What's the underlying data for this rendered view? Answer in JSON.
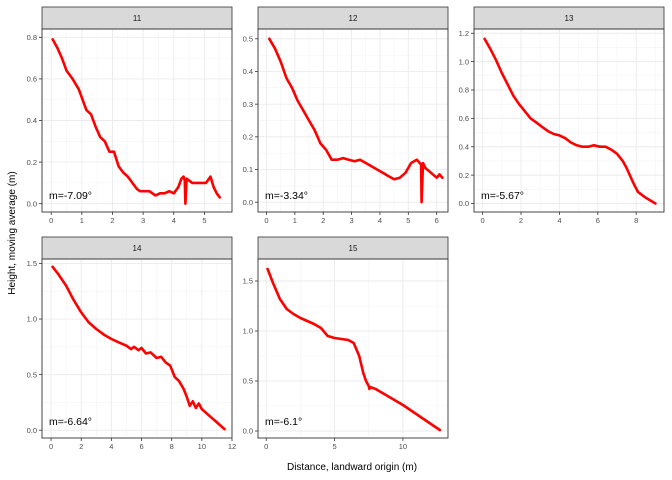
{
  "xlabel": "Distance, landward origin (m)",
  "ylabel": "Height, moving average (m)",
  "line_color": "#ff0000",
  "chart_data": [
    {
      "type": "line",
      "title": "11",
      "annotation": "m=-7.09°",
      "xlim": [
        -0.3,
        5.9
      ],
      "ylim": [
        -0.04,
        0.84
      ],
      "x_ticks": [
        0,
        1,
        2,
        3,
        4,
        5
      ],
      "y_ticks": [
        0,
        0.2,
        0.4,
        0.6,
        0.8
      ],
      "y_tick_labels": [
        "0.0",
        "0.2",
        "0.4",
        "0.6",
        "0.8"
      ],
      "x": [
        0.05,
        0.2,
        0.35,
        0.5,
        0.7,
        0.9,
        1.0,
        1.15,
        1.3,
        1.45,
        1.6,
        1.75,
        1.9,
        2.05,
        2.2,
        2.35,
        2.5,
        2.65,
        2.8,
        2.9,
        3.0,
        3.2,
        3.4,
        3.55,
        3.7,
        3.85,
        4.0,
        4.15,
        4.25,
        4.32,
        4.36,
        4.38,
        4.42,
        4.6,
        4.75,
        4.9,
        5.05,
        5.2,
        5.3,
        5.4,
        5.5
      ],
      "y": [
        0.79,
        0.75,
        0.7,
        0.64,
        0.6,
        0.55,
        0.51,
        0.45,
        0.43,
        0.37,
        0.32,
        0.3,
        0.25,
        0.25,
        0.18,
        0.15,
        0.13,
        0.1,
        0.07,
        0.06,
        0.06,
        0.06,
        0.04,
        0.05,
        0.05,
        0.06,
        0.05,
        0.08,
        0.12,
        0.13,
        0.11,
        0.0,
        0.12,
        0.1,
        0.1,
        0.1,
        0.1,
        0.13,
        0.08,
        0.05,
        0.03
      ]
    },
    {
      "type": "line",
      "title": "12",
      "annotation": "m=-3.34°",
      "xlim": [
        -0.3,
        6.4
      ],
      "ylim": [
        -0.03,
        0.53
      ],
      "x_ticks": [
        0,
        1,
        2,
        3,
        4,
        5,
        6
      ],
      "y_ticks": [
        0,
        0.1,
        0.2,
        0.3,
        0.4,
        0.5
      ],
      "y_tick_labels": [
        "0.0",
        "0.1",
        "0.2",
        "0.3",
        "0.4",
        "0.5"
      ],
      "x": [
        0.1,
        0.3,
        0.5,
        0.7,
        0.9,
        1.1,
        1.3,
        1.5,
        1.7,
        1.9,
        2.1,
        2.3,
        2.5,
        2.7,
        2.9,
        3.1,
        3.3,
        3.5,
        3.7,
        3.9,
        4.1,
        4.3,
        4.5,
        4.7,
        4.9,
        5.1,
        5.3,
        5.45,
        5.47,
        5.52,
        5.6,
        5.8,
        6.0,
        6.1,
        6.2
      ],
      "y": [
        0.5,
        0.47,
        0.43,
        0.38,
        0.35,
        0.31,
        0.28,
        0.25,
        0.22,
        0.18,
        0.16,
        0.13,
        0.13,
        0.135,
        0.13,
        0.125,
        0.13,
        0.12,
        0.11,
        0.1,
        0.09,
        0.08,
        0.07,
        0.075,
        0.09,
        0.12,
        0.13,
        0.115,
        0.0,
        0.12,
        0.105,
        0.09,
        0.075,
        0.085,
        0.075
      ]
    },
    {
      "type": "line",
      "title": "13",
      "annotation": "m=-5.67°",
      "xlim": [
        -0.45,
        9.45
      ],
      "ylim": [
        -0.06,
        1.23
      ],
      "x_ticks": [
        0,
        2,
        4,
        6,
        8
      ],
      "y_ticks": [
        0,
        0.2,
        0.4,
        0.6,
        0.8,
        1.0,
        1.2
      ],
      "y_tick_labels": [
        "0.0",
        "0.2",
        "0.4",
        "0.6",
        "0.8",
        "1.0",
        "1.2"
      ],
      "x": [
        0.1,
        0.4,
        0.7,
        1.0,
        1.3,
        1.6,
        1.9,
        2.2,
        2.5,
        2.8,
        3.1,
        3.4,
        3.7,
        4.0,
        4.3,
        4.6,
        4.9,
        5.2,
        5.5,
        5.8,
        6.1,
        6.4,
        6.7,
        7.0,
        7.3,
        7.5,
        7.7,
        7.9,
        8.1,
        8.5,
        9.0
      ],
      "y": [
        1.16,
        1.09,
        1.01,
        0.92,
        0.84,
        0.76,
        0.7,
        0.65,
        0.6,
        0.57,
        0.54,
        0.51,
        0.49,
        0.48,
        0.46,
        0.43,
        0.41,
        0.4,
        0.4,
        0.41,
        0.4,
        0.4,
        0.38,
        0.35,
        0.3,
        0.25,
        0.19,
        0.13,
        0.08,
        0.04,
        0.0
      ]
    },
    {
      "type": "line",
      "title": "14",
      "annotation": "m=-6.64°",
      "xlim": [
        -0.6,
        12.0
      ],
      "ylim": [
        -0.07,
        1.54
      ],
      "x_ticks": [
        0,
        2,
        4,
        6,
        8,
        10,
        12
      ],
      "y_ticks": [
        0,
        0.5,
        1.0,
        1.5
      ],
      "y_tick_labels": [
        "0.0",
        "0.5",
        "1.0",
        "1.5"
      ],
      "x": [
        0.1,
        0.5,
        1.0,
        1.5,
        2.0,
        2.5,
        3.0,
        3.5,
        4.0,
        4.5,
        5.0,
        5.3,
        5.5,
        5.8,
        6.0,
        6.3,
        6.6,
        7.0,
        7.3,
        7.6,
        7.9,
        8.2,
        8.5,
        8.8,
        9.0,
        9.2,
        9.4,
        9.6,
        9.8,
        10.0,
        10.5,
        11.0,
        11.5
      ],
      "y": [
        1.47,
        1.4,
        1.3,
        1.17,
        1.06,
        0.97,
        0.91,
        0.86,
        0.82,
        0.79,
        0.76,
        0.73,
        0.75,
        0.72,
        0.74,
        0.69,
        0.7,
        0.65,
        0.66,
        0.61,
        0.58,
        0.48,
        0.44,
        0.37,
        0.3,
        0.22,
        0.26,
        0.2,
        0.24,
        0.19,
        0.13,
        0.07,
        0.01
      ]
    },
    {
      "type": "line",
      "title": "15",
      "annotation": "m=-6.1°",
      "xlim": [
        -0.6,
        13.3
      ],
      "ylim": [
        -0.07,
        1.72
      ],
      "x_ticks": [
        0,
        5,
        10
      ],
      "y_ticks": [
        0,
        0.5,
        1.0,
        1.5
      ],
      "y_tick_labels": [
        "0.0",
        "0.5",
        "1.0",
        "1.5"
      ],
      "x": [
        0.1,
        0.5,
        1.0,
        1.5,
        2.0,
        2.5,
        3.0,
        3.5,
        4.0,
        4.5,
        5.0,
        5.5,
        6.0,
        6.4,
        6.8,
        7.1,
        7.3,
        7.5,
        7.55,
        7.6,
        8.0,
        10.0,
        12.7
      ],
      "y": [
        1.62,
        1.48,
        1.32,
        1.22,
        1.17,
        1.13,
        1.1,
        1.07,
        1.03,
        0.95,
        0.93,
        0.92,
        0.91,
        0.88,
        0.75,
        0.58,
        0.5,
        0.45,
        0.42,
        0.44,
        0.42,
        0.26,
        0.01
      ]
    }
  ]
}
